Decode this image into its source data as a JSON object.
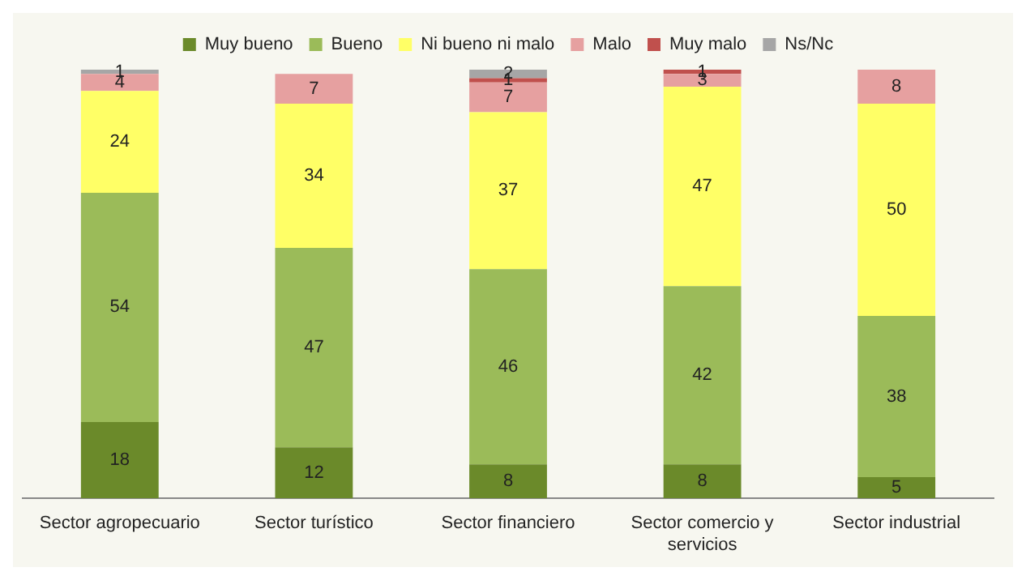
{
  "chart_data": {
    "type": "bar",
    "stacked": true,
    "data_labels": true,
    "legend": "top",
    "grid": false,
    "categories": [
      "Sector agropecuario",
      "Sector turístico",
      "Sector financiero",
      "Sector comercio y servicios",
      "Sector industrial"
    ],
    "series": [
      {
        "name": "Muy bueno",
        "color": "#6b8a2a",
        "values": [
          18,
          12,
          8,
          8,
          5
        ]
      },
      {
        "name": "Bueno",
        "color": "#9bbb59",
        "values": [
          54,
          47,
          46,
          42,
          38
        ]
      },
      {
        "name": "Ni bueno ni malo",
        "color": "#ffff66",
        "values": [
          24,
          34,
          37,
          47,
          50
        ]
      },
      {
        "name": "Malo",
        "color": "#e6a0a0",
        "values": [
          4,
          7,
          7,
          3,
          8
        ]
      },
      {
        "name": "Muy malo",
        "color": "#c0504d",
        "values": [
          null,
          null,
          1,
          1,
          null
        ]
      },
      {
        "name": "Ns/Nc",
        "color": "#a6a6a6",
        "values": [
          1,
          null,
          2,
          null,
          null
        ]
      }
    ]
  }
}
